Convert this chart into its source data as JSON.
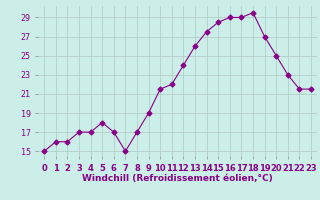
{
  "x": [
    0,
    1,
    2,
    3,
    4,
    5,
    6,
    7,
    8,
    9,
    10,
    11,
    12,
    13,
    14,
    15,
    16,
    17,
    18,
    19,
    20,
    21,
    22,
    23
  ],
  "y": [
    15.0,
    16.0,
    16.0,
    17.0,
    17.0,
    18.0,
    17.0,
    15.0,
    17.0,
    19.0,
    21.5,
    22.0,
    24.0,
    26.0,
    27.5,
    28.5,
    29.0,
    29.0,
    29.5,
    27.0,
    25.0,
    23.0,
    21.5,
    21.5
  ],
  "line_color": "#880088",
  "marker": "D",
  "marker_size": 2.5,
  "bg_color": "#cceee8",
  "grid_color": "#b0c8c4",
  "xlabel": "Windchill (Refroidissement éolien,°C)",
  "xlim_min": -0.5,
  "xlim_max": 23.5,
  "ylim_min": 14.5,
  "ylim_max": 30.2,
  "yticks": [
    15,
    17,
    19,
    21,
    23,
    25,
    27,
    29
  ],
  "xtick_labels": [
    "0",
    "1",
    "2",
    "3",
    "4",
    "5",
    "6",
    "7",
    "8",
    "9",
    "10",
    "11",
    "12",
    "13",
    "14",
    "15",
    "16",
    "17",
    "18",
    "19",
    "20",
    "21",
    "22",
    "23"
  ],
  "xlabel_fontsize": 6.5,
  "tick_fontsize": 6.0,
  "tick_color": "#880088"
}
